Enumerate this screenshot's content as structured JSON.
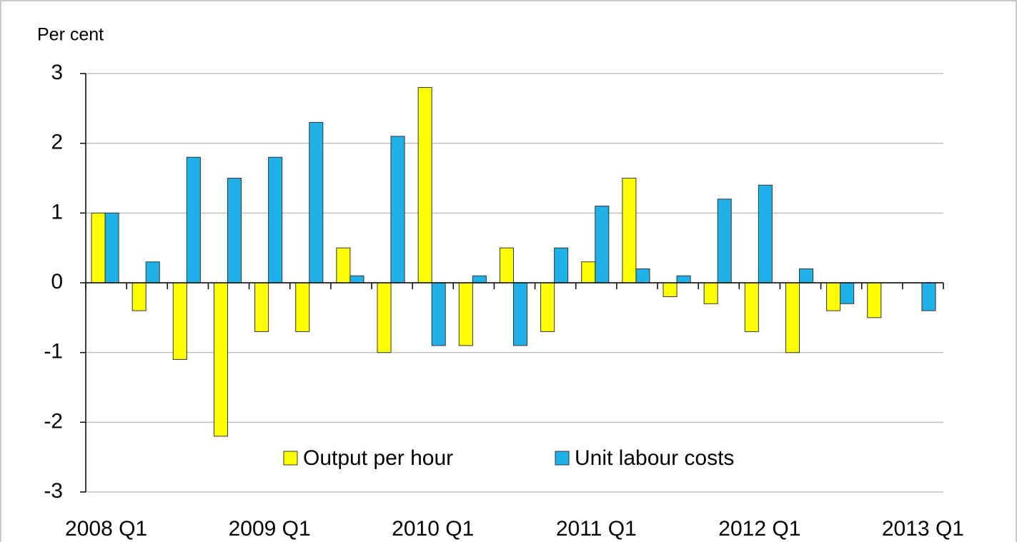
{
  "chart_data": {
    "type": "bar",
    "y_label": "Per cent",
    "categories": [
      "2008 Q1",
      null,
      null,
      null,
      "2009 Q1",
      null,
      null,
      null,
      "2010 Q1",
      null,
      null,
      null,
      "2011 Q1",
      null,
      null,
      null,
      "2012 Q1",
      null,
      null,
      null,
      "2013 Q1"
    ],
    "series": [
      {
        "name": "Output per hour",
        "color": "#ffff00",
        "values": [
          1.0,
          -0.4,
          -1.1,
          -2.2,
          -0.7,
          -0.7,
          0.5,
          -1.0,
          2.8,
          -0.9,
          0.5,
          -0.7,
          0.3,
          1.5,
          -0.2,
          -0.3,
          -0.7,
          -1.0,
          -0.4,
          -0.5,
          0.0
        ]
      },
      {
        "name": "Unit labour costs",
        "color": "#1fb1e8",
        "values": [
          1.0,
          0.3,
          1.8,
          1.5,
          1.8,
          2.3,
          0.1,
          2.1,
          -0.9,
          0.1,
          -0.9,
          0.5,
          1.1,
          0.2,
          0.1,
          1.2,
          1.4,
          0.2,
          -0.3,
          0.0,
          -0.4
        ]
      }
    ],
    "ylim": [
      -3,
      3
    ],
    "yticks": [
      -3,
      -2,
      -1,
      0,
      1,
      2,
      3
    ],
    "grid": true
  }
}
